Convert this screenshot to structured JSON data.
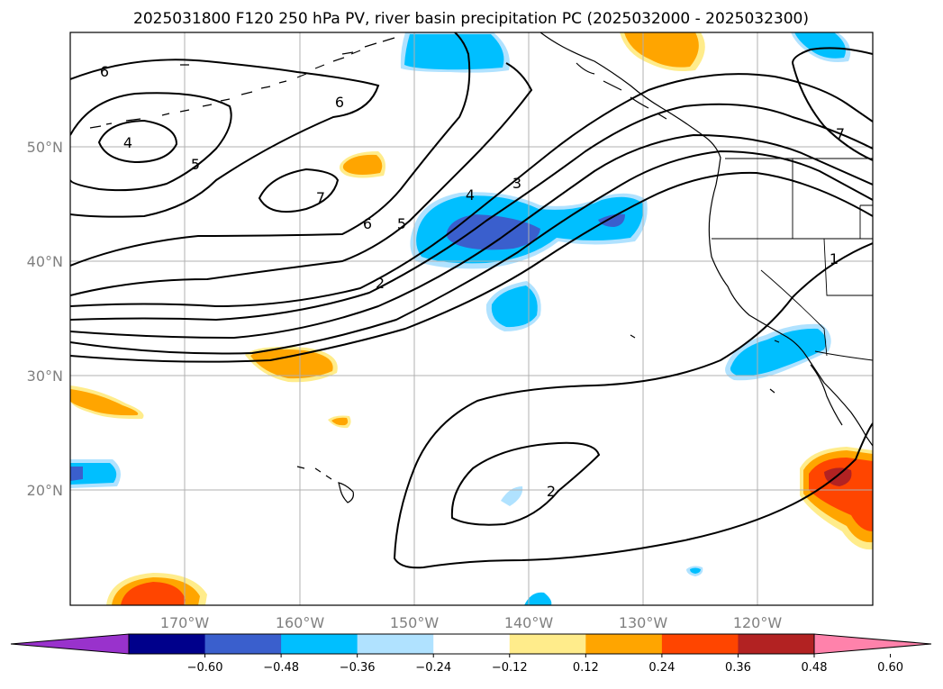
{
  "title": "2025031800 F120 250 hPa PV, river basin precipitation PC (2025032000 - 2025032300)",
  "lat_ticks": [
    "50°N",
    "40°N",
    "30°N",
    "20°N"
  ],
  "lon_ticks": [
    "170°W",
    "160°W",
    "150°W",
    "140°W",
    "130°W",
    "120°W"
  ],
  "colorbar": {
    "ticks": [
      "−0.60",
      "−0.48",
      "−0.36",
      "−0.24",
      "−0.12",
      "0.12",
      "0.24",
      "0.36",
      "0.48",
      "0.60"
    ],
    "colors": [
      "#9932cc",
      "#00008b",
      "#3a5fcd",
      "#00bfff",
      "#b0e2ff",
      "#ffffff",
      "#ffec8b",
      "#ffa500",
      "#ff4500",
      "#b22222",
      "#ff82ab"
    ]
  },
  "pv_contour_labels": [
    "6",
    "4",
    "5",
    "6",
    "7",
    "6",
    "5",
    "4",
    "3",
    "2",
    "2",
    "7",
    "1"
  ]
}
